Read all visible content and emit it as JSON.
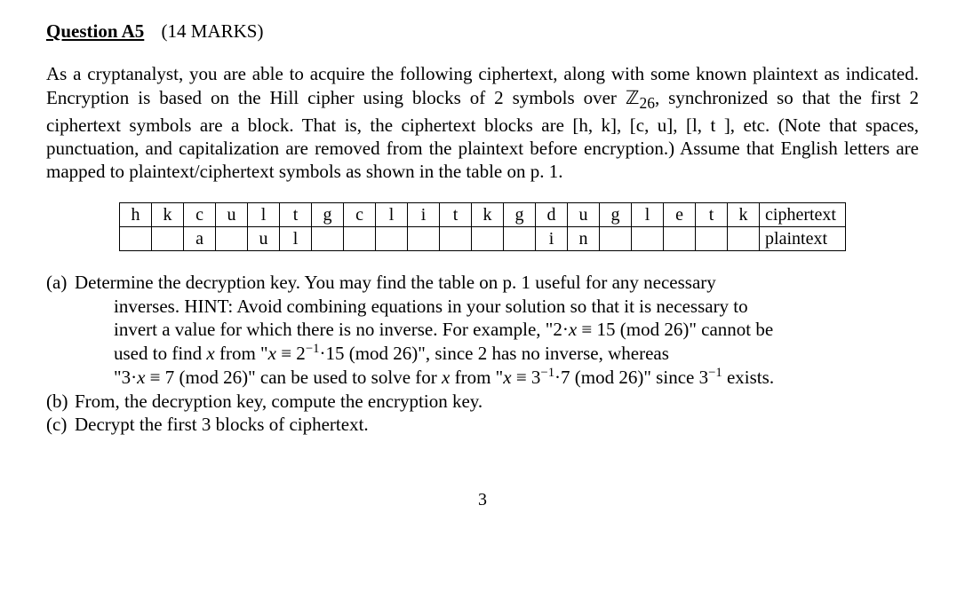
{
  "header": {
    "question_label": "Question A5",
    "marks": "(14 MARKS)"
  },
  "intro": {
    "pre_z": "As a cryptanalyst, you are able to acquire the following ciphertext, along with some known plaintext as indicated. Encryption is based on the Hill cipher using blocks of 2 symbols over ",
    "z_symbol": "ℤ",
    "z_sub": "26",
    "post_z": ", synchronized so that the first 2 ciphertext symbols are a block. That is, the ciphertext blocks are [h, k], [c, u], [l, t ], etc. (Note that spaces, punctuation, and capitalization are removed from the plaintext before encryption.) Assume that English letters are mapped to plaintext/ciphertext symbols as shown in the table on p. 1."
  },
  "table": {
    "row_ciphertext_label": "ciphertext",
    "row_plaintext_label": "plaintext",
    "ciphertext": [
      "h",
      "k",
      "c",
      "u",
      "l",
      "t",
      "g",
      "c",
      "l",
      "i",
      "t",
      "k",
      "g",
      "d",
      "u",
      "g",
      "l",
      "e",
      "t",
      "k"
    ],
    "plaintext": [
      "",
      "",
      "a",
      "",
      "u",
      "l",
      "",
      "",
      "",
      "",
      "",
      "",
      "",
      "i",
      "n",
      "",
      "",
      "",
      "",
      ""
    ]
  },
  "parts": {
    "a": {
      "label": "(a)",
      "line0": "Determine the decryption key. You may find the table on p. 1 useful for any necessary",
      "line1": "inverses. HINT: Avoid combining equations in your solution so that it is necessary to",
      "line2_pre": "invert a value for which there is no inverse. For example, \"2·",
      "line2_x": "x",
      "line2_post": " ≡ 15 (mod 26)\" cannot be",
      "line3_pre": "used to find ",
      "line3_x1": "x",
      "line3_mid1": " from \"",
      "line3_x2": "x",
      "line3_mid2": " ≡ 2",
      "line3_sup": "−1",
      "line3_post": "·15 (mod 26)\", since 2 has no inverse, whereas",
      "line4_pre": "\"3·",
      "line4_x1": "x",
      "line4_mid1": " ≡ 7 (mod 26)\" can be used to solve for ",
      "line4_x2": "x",
      "line4_mid2": " from \"",
      "line4_x3": "x",
      "line4_mid3": " ≡ 3",
      "line4_sup1": "−1",
      "line4_mid4": "·7 (mod 26)\" since 3",
      "line4_sup2": "−1",
      "line4_post": " exists."
    },
    "b": {
      "label": "(b)",
      "text": "From, the decryption key, compute the encryption key."
    },
    "c": {
      "label": "(c)",
      "text": "Decrypt the first 3 blocks of ciphertext."
    }
  },
  "page_number": "3"
}
